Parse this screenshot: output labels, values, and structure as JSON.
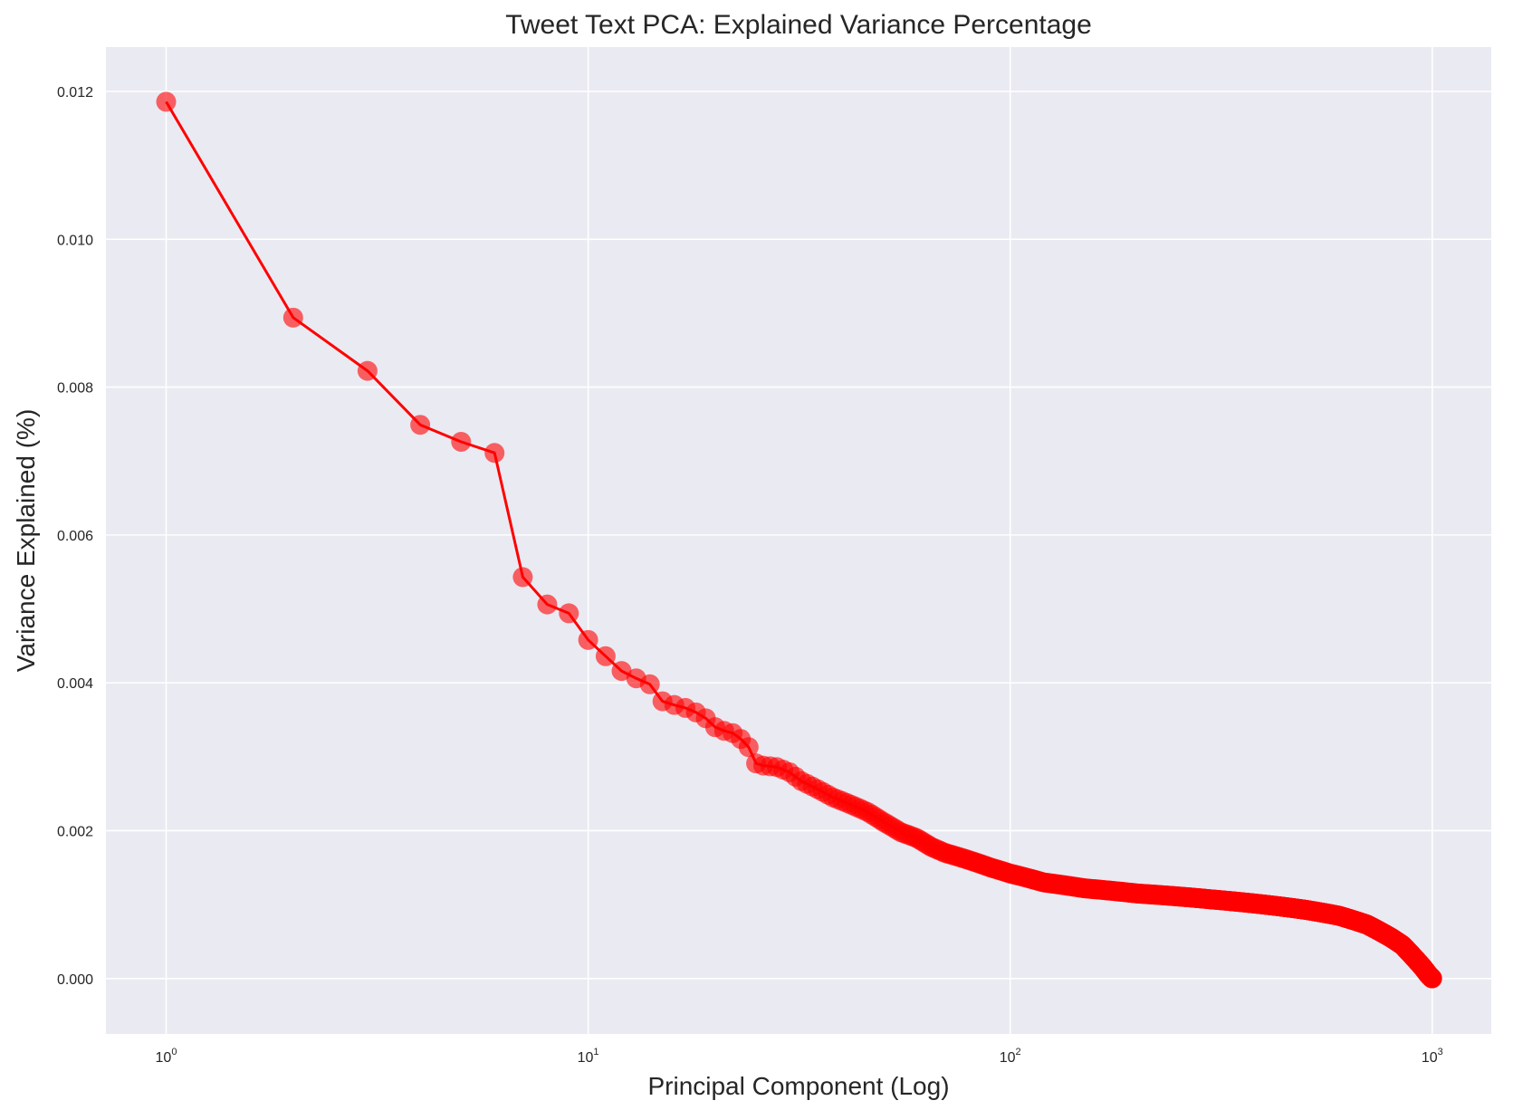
{
  "chart_data": {
    "type": "line",
    "title": "Tweet Text PCA: Explained Variance Percentage",
    "xlabel": "Principal Component (Log)",
    "ylabel": "Variance Explained (%)",
    "x_scale": "log",
    "xlim": [
      0.72,
      1380
    ],
    "ylim": [
      -0.00075,
      0.0126
    ],
    "x_ticks": [
      {
        "value": 1,
        "base": "10",
        "exp": "0"
      },
      {
        "value": 10,
        "base": "10",
        "exp": "1"
      },
      {
        "value": 100,
        "base": "10",
        "exp": "2"
      },
      {
        "value": 1000,
        "base": "10",
        "exp": "3"
      }
    ],
    "y_ticks": [
      {
        "value": 0.0,
        "label": "0.000"
      },
      {
        "value": 0.002,
        "label": "0.002"
      },
      {
        "value": 0.004,
        "label": "0.004"
      },
      {
        "value": 0.006,
        "label": "0.006"
      },
      {
        "value": 0.008,
        "label": "0.008"
      },
      {
        "value": 0.01,
        "label": "0.010"
      },
      {
        "value": 0.012,
        "label": "0.012"
      }
    ],
    "grid": true,
    "legend": "none",
    "colors": {
      "background": "#eaeaf2",
      "grid": "#ffffff",
      "line": "#ff0000",
      "marker": "#ff0000"
    },
    "series": [
      {
        "x": [
          1,
          2,
          3,
          4,
          5,
          6,
          7,
          8,
          9,
          10,
          11,
          12,
          13,
          14,
          15,
          16,
          17,
          18,
          19,
          20,
          21,
          22,
          23,
          24,
          25,
          26,
          28,
          30,
          32,
          35,
          38,
          42,
          46,
          50,
          55,
          60,
          65,
          70,
          80,
          90,
          100,
          120,
          150,
          200,
          250,
          300,
          400,
          500,
          600,
          700,
          800,
          850,
          900,
          950,
          980,
          1000
        ],
        "y": [
          0.01186,
          0.00894,
          0.00822,
          0.00749,
          0.00726,
          0.00711,
          0.00543,
          0.00506,
          0.00494,
          0.00458,
          0.00436,
          0.00416,
          0.00406,
          0.00398,
          0.00375,
          0.0037,
          0.00366,
          0.0036,
          0.00352,
          0.0034,
          0.00335,
          0.00332,
          0.00324,
          0.00313,
          0.00291,
          0.00288,
          0.00286,
          0.00279,
          0.00267,
          0.00256,
          0.00245,
          0.00235,
          0.00225,
          0.00212,
          0.00198,
          0.0019,
          0.00178,
          0.0017,
          0.0016,
          0.0015,
          0.00142,
          0.0013,
          0.00122,
          0.00115,
          0.00111,
          0.00107,
          0.001,
          0.00093,
          0.00085,
          0.00073,
          0.00055,
          0.00045,
          0.0003,
          0.00015,
          5e-05,
          0.0
        ]
      }
    ]
  }
}
